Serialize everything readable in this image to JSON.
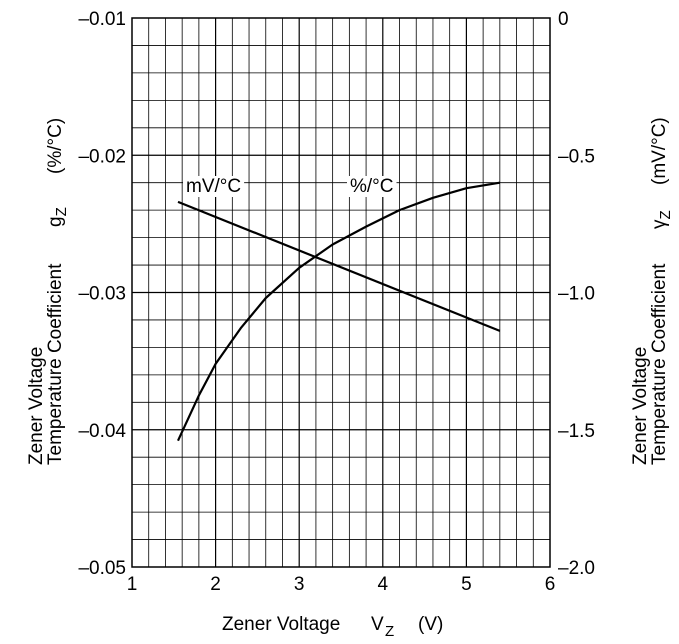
{
  "chart_data": {
    "type": "line",
    "x_label": "Zener Voltage",
    "x_symbol": "V",
    "x_symbol_sub": "Z",
    "x_unit": "(V)",
    "xlim": [
      1,
      6
    ],
    "x_ticks": [
      "1",
      "2",
      "3",
      "4",
      "5",
      "6"
    ],
    "left_axis": {
      "label_line1": "Zener Voltage",
      "label_line2": "Temperature Coefficient",
      "symbol": "g",
      "symbol_sub": "Z",
      "unit": "(%/°C)",
      "ylim": [
        -0.05,
        -0.01
      ],
      "ticks": [
        "–0.01",
        "–0.02",
        "–0.03",
        "–0.04",
        "–0.05"
      ]
    },
    "right_axis": {
      "label_line1": "Zener Voltage",
      "label_line2": "Temperature Coefficient",
      "symbol": "γ",
      "symbol_sub": "Z",
      "unit": "(mV/°C)",
      "ylim": [
        -2.0,
        0
      ],
      "ticks": [
        "0",
        "–0.5",
        "–1.0",
        "–1.5",
        "–2.0"
      ]
    },
    "grid": true,
    "series": [
      {
        "name": "%/°C",
        "axis": "left",
        "x": [
          1.55,
          1.8,
          2.0,
          2.3,
          2.6,
          3.0,
          3.4,
          3.8,
          4.2,
          4.6,
          5.0,
          5.4
        ],
        "y": [
          -0.0408,
          -0.0375,
          -0.0352,
          -0.0326,
          -0.0304,
          -0.0282,
          -0.0265,
          -0.0252,
          -0.024,
          -0.0231,
          -0.0224,
          -0.022
        ]
      },
      {
        "name": "mV/°C",
        "axis": "right",
        "x": [
          1.55,
          5.4
        ],
        "y": [
          -0.67,
          -1.14
        ]
      }
    ]
  }
}
